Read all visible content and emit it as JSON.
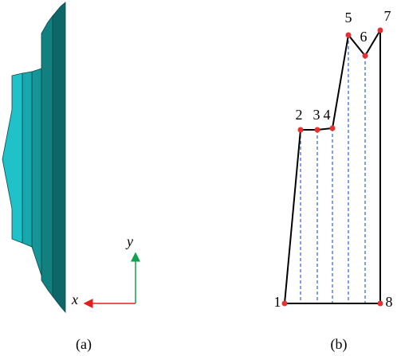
{
  "panels": [
    {
      "caption": "(a)"
    },
    {
      "caption": "(b)"
    }
  ],
  "axes": {
    "x": "x",
    "y": "y"
  },
  "nodes": [
    {
      "label": "1"
    },
    {
      "label": "2"
    },
    {
      "label": "3"
    },
    {
      "label": "4"
    },
    {
      "label": "5"
    },
    {
      "label": "6"
    },
    {
      "label": "7"
    },
    {
      "label": "8"
    }
  ]
}
